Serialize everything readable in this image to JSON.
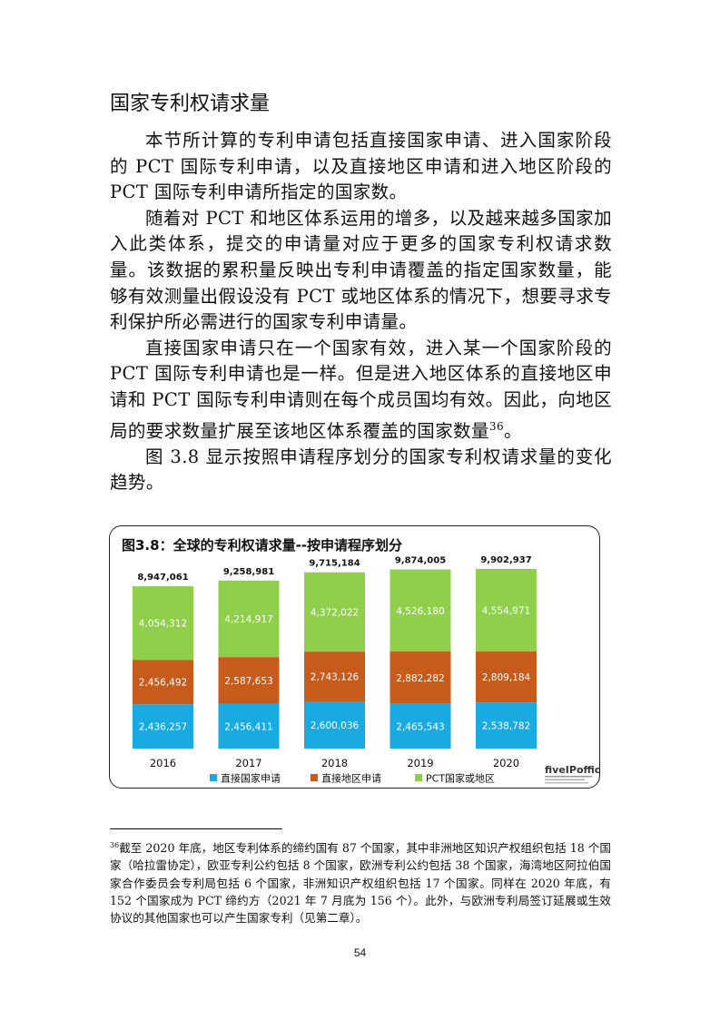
{
  "heading": "国家专利权请求量",
  "paragraphs": [
    "本节所计算的专利申请包括直接国家申请、进入国家阶段的 PCT 国际专利申请，以及直接地区申请和进入地区阶段的 PCT 国际专利申请所指定的国家数。",
    "随着对 PCT 和地区体系运用的增多，以及越来越多国家加入此类体系，提交的申请量对应于更多的国家专利权请求数量。该数据的累积量反映出专利申请覆盖的指定国家数量，能够有效测量出假设没有 PCT 或地区体系的情况下，想要寻求专利保护所必需进行的国家专利申请量。",
    "直接国家申请只在一个国家有效，进入某一个国家阶段的 PCT 国际专利申请也是一样。但是进入地区体系的直接地区申请和 PCT 国际专利申请则在每个成员国均有效。因此，向地区局的要求数量扩展至该地区体系覆盖的国家数量",
    "图 3.8 显示按照申请程序划分的国家专利权请求量的变化趋势。"
  ],
  "p3_footnote_ref": "36",
  "p3_end": "。",
  "chart_data": {
    "type": "bar",
    "stacked": true,
    "title": "图3.8：全球的专利权请求量--按申请程序划分",
    "categories": [
      "2016",
      "2017",
      "2018",
      "2019",
      "2020"
    ],
    "series": [
      {
        "name": "直接国家申请",
        "color": "#1aaae2",
        "values": [
          2436257,
          2456411,
          2600036,
          2465543,
          2538782
        ],
        "labels": [
          "2,436,257",
          "2,456,411",
          "2,600,036",
          "2,465,543",
          "2,538,782"
        ]
      },
      {
        "name": "直接地区申请",
        "color": "#c75b1b",
        "values": [
          2456492,
          2587653,
          2743126,
          2882282,
          2809184
        ],
        "labels": [
          "2,456,492",
          "2,587,653",
          "2,743,126",
          "2,882,282",
          "2,809,184"
        ]
      },
      {
        "name": "PCT国家或地区",
        "color": "#8fcf4b",
        "values": [
          4054312,
          4214917,
          4372022,
          4526180,
          4554971
        ],
        "labels": [
          "4,054,312",
          "4,214,917",
          "4,372,022",
          "4,526,180",
          "4,554,971"
        ]
      }
    ],
    "totals": [
      8947061,
      9258981,
      9715184,
      9874005,
      9902937
    ],
    "total_labels": [
      "8,947,061",
      "9,258,981",
      "9,715,184",
      "9,874,005",
      "9,902,937"
    ],
    "ylim": [
      0,
      10000000
    ],
    "legend_position": "bottom",
    "logo": "fiveIPoffices"
  },
  "footnote": {
    "number": "36",
    "text": "截至 2020 年底，地区专利体系的缔约国有 87 个国家，其中非洲地区知识产权组织包括 18 个国家（哈拉雷协定），欧亚专利公约包括 8 个国家，欧洲专利公约包括 38 个国家，海湾地区阿拉伯国家合作委员会专利局包括 6 个国家，非洲知识产权组织包括 17 个国家。同样在 2020 年底，有 152 个国家成为 PCT 缔约方（2021 年 7 月底为 156 个）。此外，与欧洲专利局签订延展或生效协议的其他国家也可以产生国家专利（见第二章）。"
  },
  "page_number": "54"
}
